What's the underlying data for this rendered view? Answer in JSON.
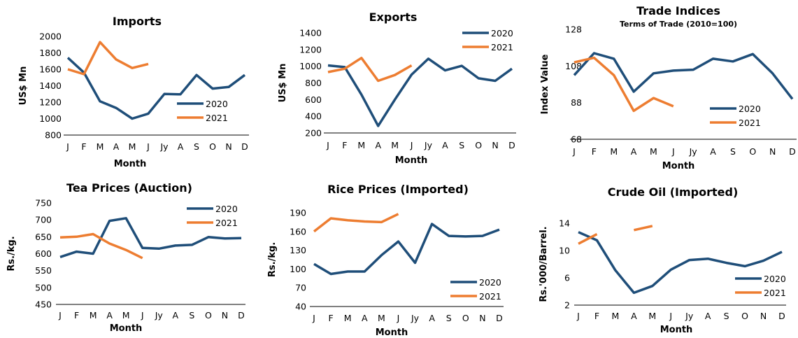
{
  "months": [
    "J",
    "F",
    "M",
    "A",
    "M",
    "J",
    "Jy",
    "A",
    "S",
    "O",
    "N",
    "D"
  ],
  "colors": {
    "2020": "#1f4e79",
    "2021": "#ed7d31"
  },
  "chart_data": [
    {
      "type": "line",
      "title": "Imports",
      "subtitle": "",
      "xlabel": "Month",
      "ylabel": "US$ Mn",
      "ylim": [
        800,
        2000
      ],
      "yticks": [
        "800",
        "1000",
        "1200",
        "1400",
        "1600",
        "1800",
        "2000"
      ],
      "grid": false,
      "legend_position": "right",
      "series": [
        {
          "name": "2020",
          "values": [
            1740,
            1560,
            1210,
            1130,
            1000,
            1060,
            1300,
            1295,
            1530,
            1365,
            1385,
            1530
          ]
        },
        {
          "name": "2021",
          "values": [
            1600,
            1540,
            1930,
            1720,
            1615,
            1665
          ]
        }
      ]
    },
    {
      "type": "line",
      "title": "Exports",
      "subtitle": "",
      "xlabel": "Month",
      "ylabel": "US$ Mn",
      "ylim": [
        200,
        1400
      ],
      "yticks": [
        "200",
        "400",
        "600",
        "800",
        "1000",
        "1200",
        "1400"
      ],
      "grid": false,
      "legend_position": "top-right",
      "series": [
        {
          "name": "2020",
          "values": [
            1010,
            990,
            660,
            285,
            600,
            900,
            1090,
            950,
            1005,
            855,
            825,
            970
          ]
        },
        {
          "name": "2021",
          "values": [
            930,
            970,
            1100,
            825,
            895,
            1010
          ]
        }
      ]
    },
    {
      "type": "line",
      "title": "Trade Indices",
      "subtitle": "Terms of Trade (2010=100)",
      "xlabel": "Month",
      "ylabel": "Index Value",
      "ylim": [
        68,
        128
      ],
      "yticks": [
        "68",
        "88",
        "108",
        "128"
      ],
      "grid": false,
      "legend_position": "bottom-right",
      "series": [
        {
          "name": "2020",
          "values": [
            103,
            115,
            112,
            94,
            104,
            105.5,
            106,
            112,
            110.5,
            114.5,
            104,
            90
          ]
        },
        {
          "name": "2021",
          "values": [
            110,
            112.5,
            103,
            83.5,
            90.5,
            86
          ]
        }
      ]
    },
    {
      "type": "line",
      "title": "Tea Prices (Auction)",
      "subtitle": "",
      "xlabel": "Month",
      "ylabel": "Rs./kg.",
      "ylim": [
        450,
        750
      ],
      "yticks": [
        "450",
        "500",
        "550",
        "600",
        "650",
        "700",
        "750"
      ],
      "grid": false,
      "legend_position": "top-right",
      "series": [
        {
          "name": "2020",
          "values": [
            590,
            606,
            600,
            697,
            705,
            617,
            615,
            624,
            626,
            649,
            645,
            646
          ]
        },
        {
          "name": "2021",
          "values": [
            648,
            650,
            658,
            630,
            611,
            587
          ]
        }
      ]
    },
    {
      "type": "line",
      "title": "Rice Prices (Imported)",
      "subtitle": "",
      "xlabel": "Month",
      "ylabel": "Rs./kg.",
      "ylim": [
        40,
        190
      ],
      "yticks": [
        "40",
        "70",
        "100",
        "130",
        "160",
        "190"
      ],
      "grid": false,
      "legend_position": "bottom-right",
      "series": [
        {
          "name": "2020",
          "values": [
            108,
            92,
            96,
            96,
            122,
            144,
            110,
            172,
            153,
            152,
            153,
            163
          ]
        },
        {
          "name": "2021",
          "values": [
            160,
            181,
            178,
            176,
            175,
            188
          ]
        }
      ]
    },
    {
      "type": "line",
      "title": "Crude Oil (Imported)",
      "subtitle": "",
      "xlabel": "Month",
      "ylabel": "Rs.'000/Barrel.",
      "ylim": [
        2,
        14
      ],
      "yticks": [
        "2",
        "6",
        "10",
        "14"
      ],
      "grid": false,
      "legend_position": "bottom-right",
      "series": [
        {
          "name": "2020",
          "values": [
            12.7,
            11.5,
            7.1,
            3.8,
            4.8,
            7.2,
            8.6,
            8.8,
            8.2,
            7.7,
            8.5,
            9.8
          ]
        },
        {
          "name": "2021",
          "values": [
            11.0,
            12.4,
            null,
            13.0,
            13.6,
            null
          ]
        }
      ]
    }
  ]
}
